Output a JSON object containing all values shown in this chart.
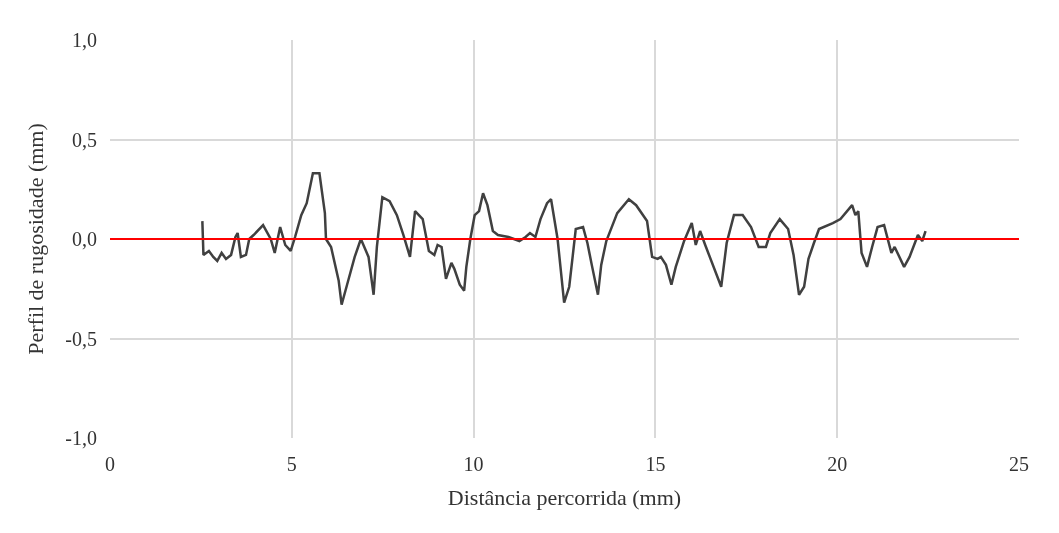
{
  "chart_data": {
    "type": "line",
    "xlabel": "Distância percorrida (mm)",
    "ylabel": "Perfil de rugosidade (mm)",
    "xlim": [
      0,
      25
    ],
    "xticks": [
      0,
      5,
      10,
      15,
      20,
      25
    ],
    "ylim": [
      -1,
      1
    ],
    "yticks": [
      {
        "value": -1,
        "label": "-1,0"
      },
      {
        "value": -0.5,
        "label": "-0,5"
      },
      {
        "value": 0,
        "label": "0,0"
      },
      {
        "value": 0.5,
        "label": "0,5"
      },
      {
        "value": 1,
        "label": "1,0"
      }
    ],
    "grid": true,
    "marker": "none",
    "line_style": "solid",
    "ref_lines": [
      {
        "axis": "y",
        "value": 0,
        "label": null,
        "color": "#ff0000"
      }
    ],
    "series": [
      {
        "color": "#404040",
        "x": [
          2.54,
          2.57,
          2.72,
          2.84,
          2.95,
          3.07,
          3.19,
          3.33,
          3.45,
          3.51,
          3.6,
          3.74,
          3.83,
          3.95,
          4.21,
          4.42,
          4.53,
          4.68,
          4.82,
          4.97,
          5.09,
          5.26,
          5.41,
          5.58,
          5.76,
          5.91,
          5.94,
          6.08,
          6.29,
          6.37,
          6.52,
          6.73,
          6.9,
          7.11,
          7.25,
          7.34,
          7.49,
          7.69,
          7.89,
          8.07,
          8.25,
          8.39,
          8.6,
          8.77,
          8.92,
          9.01,
          9.12,
          9.24,
          9.39,
          9.47,
          9.62,
          9.74,
          9.8,
          9.91,
          10.03,
          10.15,
          10.26,
          10.38,
          10.53,
          10.67,
          10.96,
          11.26,
          11.43,
          11.55,
          11.7,
          11.84,
          12.02,
          12.13,
          12.31,
          12.49,
          12.63,
          12.81,
          13.01,
          13.13,
          13.25,
          13.42,
          13.51,
          13.65,
          13.95,
          14.27,
          14.47,
          14.77,
          14.91,
          15.06,
          15.15,
          15.29,
          15.44,
          15.56,
          15.79,
          16.0,
          16.11,
          16.23,
          16.37,
          16.81,
          16.96,
          17.16,
          17.4,
          17.63,
          17.84,
          18.04,
          18.16,
          18.42,
          18.65,
          18.8,
          18.95,
          19.09,
          19.21,
          19.36,
          19.5,
          19.88,
          20.09,
          20.41,
          20.5,
          20.58,
          20.67,
          20.82,
          20.96,
          21.11,
          21.29,
          21.49,
          21.58,
          21.84,
          21.99,
          22.22,
          22.34,
          22.43
        ],
        "values": [
          0.09,
          -0.08,
          -0.06,
          -0.09,
          -0.11,
          -0.07,
          -0.1,
          -0.08,
          0.01,
          0.03,
          -0.09,
          -0.08,
          0.0,
          0.02,
          0.07,
          0.0,
          -0.07,
          0.06,
          -0.03,
          -0.06,
          0.01,
          0.12,
          0.18,
          0.33,
          0.33,
          0.13,
          0.0,
          -0.04,
          -0.21,
          -0.33,
          -0.23,
          -0.09,
          0.0,
          -0.09,
          -0.28,
          -0.04,
          0.21,
          0.19,
          0.12,
          0.02,
          -0.09,
          0.14,
          0.1,
          -0.06,
          -0.08,
          -0.03,
          -0.04,
          -0.2,
          -0.12,
          -0.15,
          -0.23,
          -0.26,
          -0.14,
          0.0,
          0.12,
          0.14,
          0.23,
          0.17,
          0.04,
          0.02,
          0.01,
          -0.01,
          0.01,
          0.03,
          0.01,
          0.1,
          0.18,
          0.2,
          0.0,
          -0.32,
          -0.24,
          0.05,
          0.06,
          -0.02,
          -0.13,
          -0.28,
          -0.13,
          -0.01,
          0.13,
          0.2,
          0.17,
          0.09,
          -0.09,
          -0.1,
          -0.09,
          -0.13,
          -0.23,
          -0.14,
          -0.01,
          0.08,
          -0.03,
          0.04,
          -0.03,
          -0.24,
          -0.02,
          0.12,
          0.12,
          0.06,
          -0.04,
          -0.04,
          0.03,
          0.1,
          0.05,
          -0.08,
          -0.28,
          -0.24,
          -0.1,
          -0.02,
          0.05,
          0.08,
          0.1,
          0.17,
          0.12,
          0.14,
          -0.07,
          -0.14,
          -0.04,
          0.06,
          0.07,
          -0.07,
          -0.04,
          -0.14,
          -0.09,
          0.02,
          -0.01,
          0.04
        ]
      }
    ]
  }
}
